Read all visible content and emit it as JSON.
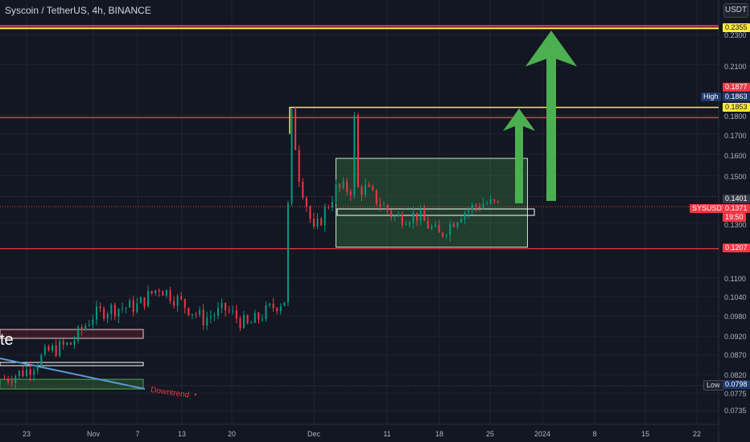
{
  "header": {
    "symbol_title": "Syscoin / TetherUS, 4h, BINANCE",
    "currency_button": "USDT"
  },
  "price_axis": {
    "ticks": [
      "0.2300",
      "0.2100",
      "0.1800",
      "0.1700",
      "0.1600",
      "0.1500",
      "0.1300",
      "0.1100",
      "0.1040",
      "0.0980",
      "0.0920",
      "0.0870",
      "0.0820",
      "0.0775",
      "0.0735"
    ],
    "badges": {
      "top_resistance": "0.2355",
      "red_level_upper": "0.1877",
      "high_label": "High",
      "high_value": "0.1863",
      "yellow_level": "0.1853",
      "last_close": "0.1401",
      "symbol_tag": "SYSUSDT",
      "current_price": "0.1371",
      "countdown": "19:50",
      "red_support": "0.1207",
      "low_label": "Low",
      "low_value": "0.0798"
    }
  },
  "time_axis": [
    "23",
    "Nov",
    "7",
    "13",
    "20",
    "Dec",
    "11",
    "18",
    "25",
    "2024",
    "8",
    "15",
    "22"
  ],
  "annotations": {
    "downtrend_label": "Downtrend",
    "partial_text": "te"
  },
  "colors": {
    "background": "#131722",
    "up": "#089981",
    "down": "#f23645",
    "resistance_red": "#f23645",
    "target_yellow": "#ffeb3b",
    "arrow_green": "#4caf50",
    "range_box": "rgba(76,175,80,0.25)"
  },
  "chart_data": {
    "type": "candlestick",
    "x_range": [
      "Oct 20",
      "Jan 25"
    ],
    "ylim": [
      0.072,
      0.24
    ],
    "log_scale": true,
    "price_series": [
      {
        "date": "Oct 20",
        "close": 0.081
      },
      {
        "date": "Oct 23",
        "close": 0.083
      },
      {
        "date": "Oct 26",
        "close": 0.088
      },
      {
        "date": "Oct 29",
        "close": 0.09
      },
      {
        "date": "Nov 1",
        "close": 0.098
      },
      {
        "date": "Nov 3",
        "close": 0.1
      },
      {
        "date": "Nov 7",
        "close": 0.101
      },
      {
        "date": "Nov 10",
        "close": 0.107
      },
      {
        "date": "Nov 13",
        "close": 0.102
      },
      {
        "date": "Nov 16",
        "close": 0.097
      },
      {
        "date": "Nov 19",
        "close": 0.1
      },
      {
        "date": "Nov 22",
        "close": 0.095
      },
      {
        "date": "Nov 25",
        "close": 0.1
      },
      {
        "date": "Nov 27",
        "close": 0.103
      },
      {
        "date": "Nov 28",
        "close": 0.18
      },
      {
        "date": "Nov 29",
        "close": 0.15
      },
      {
        "date": "Dec 1",
        "close": 0.126
      },
      {
        "date": "Dec 4",
        "close": 0.144
      },
      {
        "date": "Dec 8",
        "close": 0.144
      },
      {
        "date": "Dec 12",
        "close": 0.132
      },
      {
        "date": "Dec 15",
        "close": 0.133
      },
      {
        "date": "Dec 18",
        "close": 0.125
      },
      {
        "date": "Dec 21",
        "close": 0.134
      },
      {
        "date": "Dec 24",
        "close": 0.138
      },
      {
        "date": "Dec 26",
        "close": 0.1371
      }
    ],
    "horizontal_levels": [
      0.2355,
      0.1877,
      0.1853,
      0.1207
    ],
    "range_box": {
      "from": "Dec 4",
      "to": "Dec 30",
      "top": 0.158,
      "bottom": 0.1207
    },
    "targets": [
      0.1853,
      0.2355
    ]
  }
}
